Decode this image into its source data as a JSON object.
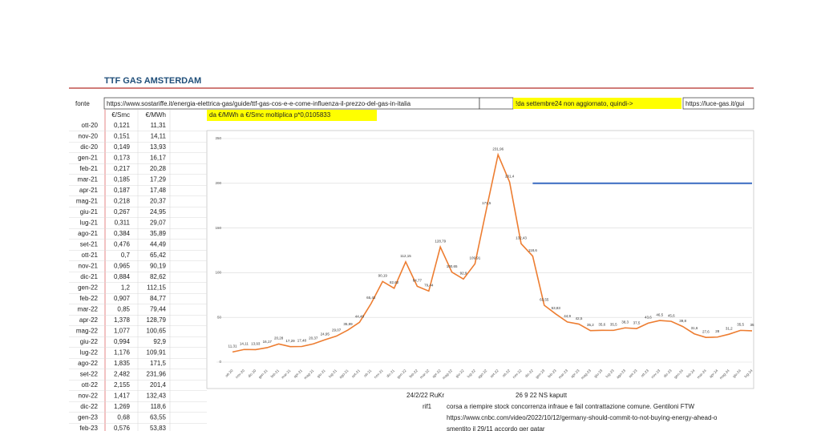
{
  "header": {
    "title": "TTF GAS AMSTERDAM"
  },
  "source_row": {
    "label": "fonte",
    "url": "https://www.sostariffe.it/energia-elettrica-gas/guide/ttf-gas-cos-e-e-come-influenza-il-prezzo-del-gas-in-italia",
    "note": "!da settembre24 non aggiornato, quindi->",
    "link": "https://luce-gas.it/gui"
  },
  "table": {
    "columns": [
      "€/Smc",
      "€/MWh"
    ],
    "hint": "da €/MWh a €/Smc moltiplica p*0,0105833",
    "rows": [
      [
        "ott-20",
        "0,121",
        "11,31"
      ],
      [
        "nov-20",
        "0,151",
        "14,11"
      ],
      [
        "dic-20",
        "0,149",
        "13,93"
      ],
      [
        "gen-21",
        "0,173",
        "16,17"
      ],
      [
        "feb-21",
        "0,217",
        "20,28"
      ],
      [
        "mar-21",
        "0,185",
        "17,29"
      ],
      [
        "apr-21",
        "0,187",
        "17,48"
      ],
      [
        "mag-21",
        "0,218",
        "20,37"
      ],
      [
        "giu-21",
        "0,267",
        "24,95"
      ],
      [
        "lug-21",
        "0,311",
        "29,07"
      ],
      [
        "ago-21",
        "0,384",
        "35,89"
      ],
      [
        "set-21",
        "0,476",
        "44,49"
      ],
      [
        "ott-21",
        "0,7",
        "65,42"
      ],
      [
        "nov-21",
        "0,965",
        "90,19"
      ],
      [
        "dic-21",
        "0,884",
        "82,62"
      ],
      [
        "gen-22",
        "1,2",
        "112,15"
      ],
      [
        "feb-22",
        "0,907",
        "84,77"
      ],
      [
        "mar-22",
        "0,85",
        "79,44"
      ],
      [
        "apr-22",
        "1,378",
        "128,79"
      ],
      [
        "mag-22",
        "1,077",
        "100,65"
      ],
      [
        "giu-22",
        "0,994",
        "92,9"
      ],
      [
        "lug-22",
        "1,176",
        "109,91"
      ],
      [
        "ago-22",
        "1,835",
        "171,5"
      ],
      [
        "set-22",
        "2,482",
        "231,96"
      ],
      [
        "ott-22",
        "2,155",
        "201,4"
      ],
      [
        "nov-22",
        "1,417",
        "132,43"
      ],
      [
        "dic-22",
        "1,269",
        "118,6"
      ],
      [
        "gen-23",
        "0,68",
        "63,55"
      ],
      [
        "feb-23",
        "0,576",
        "53,83"
      ]
    ]
  },
  "chart_data": {
    "type": "line",
    "categories": [
      "ott-20",
      "nov-20",
      "dic-20",
      "gen-21",
      "feb-21",
      "mar-21",
      "apr-21",
      "mag-21",
      "giu-21",
      "lug-21",
      "ago-21",
      "set-21",
      "ott-21",
      "nov-21",
      "dic-21",
      "gen-22",
      "feb-22",
      "mar-22",
      "apr-22",
      "mag-22",
      "giu-22",
      "lug-22",
      "ago-22",
      "set-22",
      "ott-22",
      "nov-22",
      "dic-22",
      "gen-23",
      "feb-23",
      "mar-23",
      "apr-23",
      "mag-23",
      "giu-23",
      "lug-23",
      "ago-23",
      "set-23",
      "ott-23",
      "nov-23",
      "dic-23",
      "gen-24",
      "feb-24",
      "mar-24",
      "apr-24",
      "mag-24",
      "giu-24",
      "lug-24"
    ],
    "series": [
      {
        "color": "#ed7d31",
        "values": [
          11.31,
          14.11,
          13.93,
          16.17,
          20.28,
          17.29,
          17.48,
          20.37,
          24.95,
          29.07,
          35.89,
          44.49,
          65.42,
          90.19,
          82.62,
          112.15,
          84.77,
          79.44,
          128.79,
          100.65,
          92.9,
          109.91,
          171.5,
          231.96,
          201.4,
          132.43,
          118.6,
          63.55,
          53.83,
          44.9,
          42.5,
          35.2,
          35.6,
          35.5,
          38.3,
          37.5,
          43.6,
          46.5,
          45.6,
          39.8,
          31.6,
          27.6,
          28.0,
          31.2,
          35.5,
          35.0
        ],
        "value_labels": [
          "11,31",
          "14,11",
          "13,93",
          "16,17",
          "20,28",
          "17,29",
          "17,48",
          "20,37",
          "24,95",
          "29,07",
          "35,89",
          "44,49",
          "65,42",
          "90,19",
          "82,62",
          "112,15",
          "84,77",
          "79,44",
          "128,79",
          "100,65",
          "92,9",
          "109,91",
          "171,5",
          "231,96",
          "201,4",
          "132,43",
          "118,6",
          "63,55",
          "53,83",
          "44,9",
          "42,5",
          "35,2",
          "35,6",
          "35,5",
          "38,3",
          "37,5",
          "43,6",
          "46,5",
          "45,6",
          "39,8",
          "31,6",
          "27,6",
          "28",
          "31,2",
          "35,5",
          "35"
        ]
      },
      {
        "color": "#4472c4",
        "values": [
          null,
          null,
          null,
          null,
          null,
          null,
          null,
          null,
          null,
          null,
          null,
          null,
          null,
          null,
          null,
          null,
          null,
          null,
          null,
          null,
          null,
          null,
          null,
          null,
          null,
          null,
          200,
          200,
          200,
          200,
          200,
          200,
          200,
          200,
          200,
          200,
          200,
          200,
          200,
          200,
          200,
          200,
          200,
          200,
          200,
          200
        ]
      }
    ],
    "ylim": [
      0,
      250
    ],
    "yticks": [
      0,
      50,
      100,
      150,
      200,
      250
    ],
    "grid": true
  },
  "notes": [
    {
      "text": "24/2/22 RuKr"
    },
    {
      "text": "26 9 22 NS kaputt"
    },
    {
      "text": "rif1"
    },
    {
      "text": "corsa a riempire stock concorrenza infraue e fail contrattazione comune. Gentiloni FTW"
    },
    {
      "text": "https://www.cnbc.com/video/2022/10/12/germany-should-commit-to-not-buying-energy-ahead-o"
    },
    {
      "text": "smentito il 29/11 accordo ger qatar"
    }
  ]
}
